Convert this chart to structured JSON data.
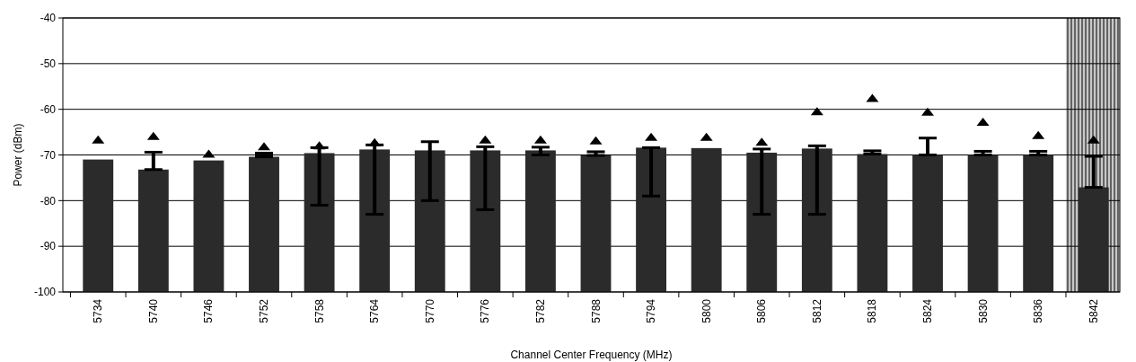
{
  "chart_data": {
    "type": "bar",
    "xlabel": "Channel Center Frequency (MHz)",
    "ylabel": "Power (dBm)",
    "categories": [
      "5734",
      "5740",
      "5746",
      "5752",
      "5758",
      "5764",
      "5770",
      "5776",
      "5782",
      "5788",
      "5794",
      "5800",
      "5806",
      "5812",
      "5818",
      "5824",
      "5830",
      "5836",
      "5842"
    ],
    "series": [
      {
        "color": "#2b2b2b",
        "base": [
          -100,
          -100,
          -100,
          -100,
          -100,
          -100,
          -100,
          -100,
          -100,
          -100,
          -100,
          -100,
          -100,
          -100,
          -100,
          -100,
          -100,
          -100,
          -100
        ],
        "values": [
          29.0,
          26.8,
          28.8,
          29.6,
          30.4,
          31.2,
          31.0,
          31.0,
          31.0,
          29.9,
          31.6,
          31.5,
          30.5,
          31.4,
          30.2,
          30.0,
          30.0,
          30.0,
          22.9
        ],
        "errors": [
          null,
          [
            -73.2,
            -69.4
          ],
          null,
          [
            -70.4,
            -69.6
          ],
          [
            -81,
            -68.4
          ],
          [
            -83,
            -67.8
          ],
          [
            -80,
            -67.1
          ],
          [
            -82,
            -68.2
          ],
          [
            -70,
            -68.3
          ],
          [
            -70.1,
            -69.3
          ],
          [
            -79,
            -68.4
          ],
          null,
          [
            -83,
            -68.7
          ],
          [
            -83,
            -68.0
          ],
          [
            -69.8,
            -69.1
          ],
          [
            -70.0,
            -66.3
          ],
          [
            -70.0,
            -69.2
          ],
          [
            -70.0,
            -69.2
          ],
          [
            -77.1,
            -70.3
          ]
        ]
      },
      {
        "type": "scatter",
        "color": "#000000",
        "marker": "triangle",
        "values": [
          -66.7,
          -65.9,
          -69.8,
          -68.2,
          -68.0,
          -67.3,
          null,
          -66.7,
          -66.7,
          -66.9,
          -66.1,
          -66.1,
          -67.2,
          -60.5,
          -57.6,
          -60.6,
          -62.8,
          -65.7,
          -66.7
        ]
      }
    ],
    "bands": [
      {
        "axis": "x",
        "from": "5842",
        "to": "5842",
        "color": "#c8c8c8"
      }
    ],
    "ylim": [
      -100,
      -40
    ],
    "yticks": [
      -100,
      -90,
      -80,
      -70,
      -60,
      -50,
      -40
    ],
    "grid": "y"
  }
}
